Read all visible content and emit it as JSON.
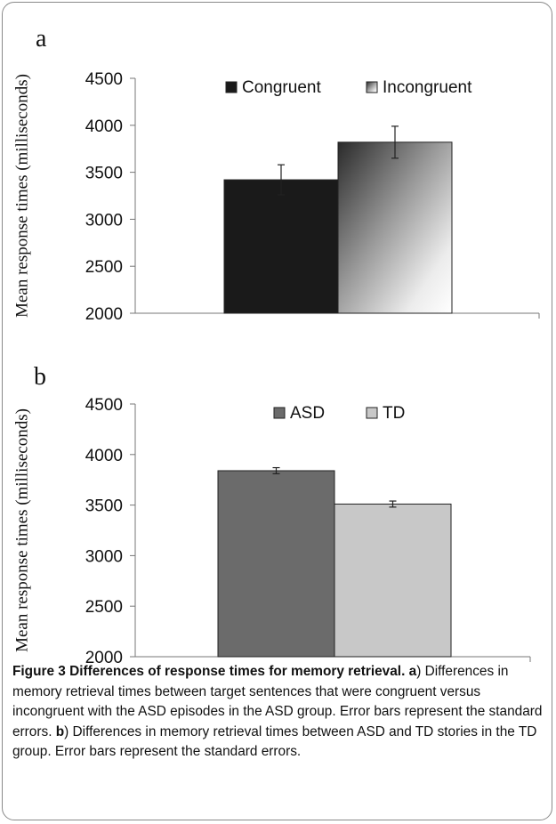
{
  "chart_data": [
    {
      "type": "bar",
      "panel_label": "a",
      "title": "",
      "xlabel": "",
      "ylabel": "Mean response times (milliseconds)",
      "ylim": [
        2000,
        4500
      ],
      "yticks": [
        2000,
        2500,
        3000,
        3500,
        4000,
        4500
      ],
      "categories": [
        ""
      ],
      "series": [
        {
          "name": "Congruent",
          "values": [
            3420
          ],
          "error": [
            160
          ],
          "color": "#1a1a1a",
          "pattern": "solid"
        },
        {
          "name": "Incongruent",
          "values": [
            3820
          ],
          "error": [
            170
          ],
          "color": "#bdbdbd",
          "pattern": "diagonal-gradient"
        }
      ],
      "legend": "top-right",
      "grid": false
    },
    {
      "type": "bar",
      "panel_label": "b",
      "title": "",
      "xlabel": "",
      "ylabel": "Mean response times (milliseconds)",
      "ylim": [
        2000,
        4500
      ],
      "yticks": [
        2000,
        2500,
        3000,
        3500,
        4000,
        4500
      ],
      "categories": [
        ""
      ],
      "series": [
        {
          "name": "ASD",
          "values": [
            3840
          ],
          "error": [
            30
          ],
          "color": "#6b6b6b",
          "pattern": "solid"
        },
        {
          "name": "TD",
          "values": [
            3510
          ],
          "error": [
            30
          ],
          "color": "#c8c8c8",
          "pattern": "solid"
        }
      ],
      "legend": "top-center",
      "grid": false
    }
  ],
  "caption": {
    "title": "Figure 3 Differences of response times for memory retrieval.",
    "label_a": "a",
    "text_a": ") Differences in memory retrieval times between target sentences that were congruent versus incongruent with the ASD episodes in the ASD group. Error bars represent the standard errors.",
    "label_b": "b",
    "text_b": ") Differences in memory retrieval times between ASD and TD stories in the TD group. Error bars represent the standard errors."
  }
}
